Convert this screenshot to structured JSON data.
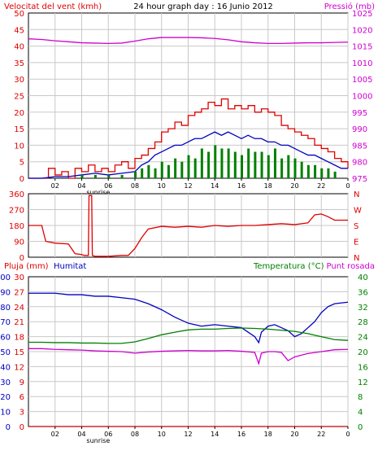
{
  "title": "24 hour graph day : 16 Junio 2012",
  "colors": {
    "red": "#e00000",
    "blue": "#0000c0",
    "magenta": "#d000d0",
    "green": "#008000",
    "darkred": "#c00000",
    "grid": "#c8c8c8"
  },
  "chart_data": [
    {
      "type": "line",
      "name": "wind-pressure",
      "left_label": "Velocitat del vent (kmh)",
      "right_label": "Pressió (mb)",
      "ylim_left": [
        0,
        50
      ],
      "ylim_right": [
        975,
        1025
      ],
      "left_ticks": [
        "0",
        "5",
        "10",
        "15",
        "20",
        "25",
        "30",
        "35",
        "40",
        "45",
        "50"
      ],
      "right_ticks": [
        "975",
        "980",
        "985",
        "990",
        "995",
        "1000",
        "1005",
        "1010",
        "1015",
        "1020",
        "1025"
      ],
      "x_ticks": [
        "02",
        "04",
        "06",
        "08",
        "10",
        "12",
        "14",
        "16",
        "18",
        "20",
        "22",
        "0"
      ],
      "sunrise_label": "sunrise",
      "sunrise_hour": 5.0,
      "series": [
        {
          "key": "pressure",
          "axis": "right",
          "color": "magenta",
          "x": [
            0,
            1,
            2,
            3,
            4,
            5,
            6,
            7,
            8,
            9,
            10,
            11,
            12,
            13,
            14,
            15,
            16,
            17,
            18,
            19,
            20,
            21,
            22,
            23,
            24
          ],
          "y": [
            1017.2,
            1017.0,
            1016.6,
            1016.3,
            1016.0,
            1015.9,
            1015.8,
            1015.9,
            1016.5,
            1017.2,
            1017.6,
            1017.6,
            1017.6,
            1017.5,
            1017.3,
            1016.9,
            1016.3,
            1016.0,
            1015.8,
            1015.8,
            1015.9,
            1016.0,
            1016.0,
            1016.1,
            1016.2
          ]
        },
        {
          "key": "gust",
          "axis": "left",
          "color": "red",
          "style": "step",
          "x": [
            0,
            1,
            1.5,
            2,
            2.5,
            3,
            3.5,
            4,
            4.5,
            5,
            5.5,
            6,
            6.5,
            7,
            7.5,
            8,
            8.5,
            9,
            9.5,
            10,
            10.5,
            11,
            11.5,
            12,
            12.5,
            13,
            13.5,
            14,
            14.5,
            15,
            15.5,
            16,
            16.5,
            17,
            17.5,
            18,
            18.5,
            19,
            19.5,
            20,
            20.5,
            21,
            21.5,
            22,
            22.5,
            23,
            23.5,
            24
          ],
          "y": [
            0,
            0,
            3,
            1,
            2,
            0,
            3,
            2,
            4,
            2,
            3,
            2,
            4,
            5,
            3,
            6,
            7,
            9,
            11,
            14,
            15,
            17,
            16,
            19,
            20,
            21,
            23,
            22,
            24,
            21,
            22,
            21,
            22,
            20,
            21,
            20,
            19,
            16,
            15,
            14,
            13,
            12,
            10,
            9,
            8,
            6,
            5,
            3
          ]
        },
        {
          "key": "speed_avg",
          "axis": "left",
          "color": "blue",
          "x": [
            0,
            1,
            2,
            3,
            4,
            5,
            6,
            7,
            8,
            8.5,
            9,
            9.5,
            10,
            10.5,
            11,
            11.5,
            12,
            12.5,
            13,
            13.5,
            14,
            14.5,
            15,
            15.5,
            16,
            16.5,
            17,
            17.5,
            18,
            18.5,
            19,
            19.5,
            20,
            20.5,
            21,
            21.5,
            22,
            22.5,
            23,
            23.5,
            24
          ],
          "y": [
            0,
            0,
            0.5,
            0.5,
            1,
            1.5,
            1,
            1.5,
            2,
            4,
            5,
            7,
            8,
            9,
            10,
            10,
            11,
            12,
            12,
            13,
            14,
            13,
            14,
            13,
            12,
            13,
            12,
            12,
            11,
            11,
            10,
            10,
            9,
            8,
            7,
            7,
            6,
            5,
            4,
            3,
            3
          ]
        },
        {
          "key": "speed_bars",
          "axis": "left",
          "color": "green",
          "style": "bars",
          "x": [
            4,
            5,
            6,
            7,
            8,
            8.5,
            9,
            9.5,
            10,
            10.5,
            11,
            11.5,
            12,
            12.5,
            13,
            13.5,
            14,
            14.5,
            15,
            15.5,
            16,
            16.5,
            17,
            17.5,
            18,
            18.5,
            19,
            19.5,
            20,
            20.5,
            21,
            21.5,
            22,
            22.5,
            23
          ],
          "y": [
            1,
            1,
            1,
            1,
            2,
            3,
            4,
            3,
            5,
            4,
            6,
            5,
            7,
            6,
            9,
            8,
            10,
            9,
            9,
            8,
            7,
            9,
            8,
            8,
            7,
            9,
            6,
            7,
            6,
            5,
            4,
            4,
            3,
            3,
            2
          ]
        }
      ]
    },
    {
      "type": "line",
      "name": "direction",
      "ylim": [
        0,
        360
      ],
      "left_ticks": [
        "0",
        "90",
        "180",
        "270",
        "360"
      ],
      "right_ticks": [
        "N",
        "E",
        "S",
        "W",
        "N"
      ],
      "series": [
        {
          "key": "direction",
          "color": "red",
          "x": [
            0,
            1,
            1.3,
            2,
            3,
            3.5,
            4,
            4.2,
            4.5,
            4.55,
            4.75,
            4.8,
            5,
            6,
            7,
            7.5,
            8,
            8.5,
            9,
            10,
            11,
            12,
            13,
            14,
            15,
            16,
            17,
            18,
            19,
            20,
            20.5,
            21,
            21.5,
            22,
            22.5,
            23,
            24
          ],
          "y": [
            180,
            180,
            90,
            80,
            75,
            20,
            15,
            10,
            10,
            350,
            350,
            10,
            5,
            5,
            10,
            10,
            50,
            110,
            160,
            175,
            170,
            175,
            170,
            180,
            175,
            180,
            180,
            185,
            190,
            185,
            190,
            195,
            240,
            245,
            230,
            210,
            210
          ]
        }
      ]
    },
    {
      "type": "line",
      "name": "rain-humidity-temp",
      "labels": {
        "rain": "Pluja (mm)",
        "humidity": "Humitat",
        "temperature": "Temperatura (°C)",
        "dewpoint": "Punt rosada"
      },
      "ylim_humidity": [
        0,
        100
      ],
      "ylim_temp": [
        0,
        40
      ],
      "ylim_rain": [
        0,
        30
      ],
      "humidity_ticks": [
        "0",
        "10",
        "20",
        "30",
        "40",
        "50",
        "60",
        "70",
        "80",
        "90",
        "100"
      ],
      "rain_ticks": [
        "0",
        "3",
        "6",
        "9",
        "12",
        "15",
        "18",
        "21",
        "24",
        "27",
        "30"
      ],
      "temp_ticks": [
        "0",
        "4",
        "8",
        "12",
        "16",
        "20",
        "24",
        "28",
        "32",
        "36",
        "40"
      ],
      "x_ticks": [
        "02",
        "04",
        "06",
        "08",
        "10",
        "12",
        "14",
        "16",
        "18",
        "20",
        "22",
        "0"
      ],
      "sunrise_label": "sunrise",
      "series": [
        {
          "key": "humidity",
          "axis": "humidity",
          "color": "blue",
          "x": [
            0,
            1,
            2,
            3,
            4,
            5,
            6,
            7,
            8,
            9,
            10,
            11,
            12,
            13,
            14,
            15,
            16,
            16.5,
            17,
            17.3,
            17.5,
            18,
            18.5,
            19,
            19.5,
            20,
            20.5,
            21,
            21.5,
            22,
            22.5,
            23,
            24
          ],
          "y": [
            89,
            89,
            89,
            88,
            88,
            87,
            87,
            86,
            85,
            82,
            78,
            73,
            69,
            67,
            68,
            67,
            66,
            63,
            60,
            56,
            63,
            67,
            68,
            66,
            64,
            60,
            62,
            66,
            70,
            76,
            80,
            82,
            83
          ]
        },
        {
          "key": "temperature",
          "axis": "temp",
          "color": "green",
          "x": [
            0,
            1,
            2,
            3,
            4,
            5,
            6,
            7,
            8,
            9,
            10,
            11,
            12,
            13,
            14,
            15,
            16,
            17,
            18,
            19,
            20,
            21,
            22,
            23,
            24
          ],
          "y": [
            22.5,
            22.5,
            22.4,
            22.4,
            22.3,
            22.3,
            22.2,
            22.2,
            22.6,
            23.5,
            24.5,
            25.2,
            25.8,
            26.0,
            26.0,
            26.2,
            26.3,
            26.2,
            26.0,
            25.7,
            25.4,
            24.8,
            24.0,
            23.2,
            23.0
          ]
        },
        {
          "key": "dewpoint",
          "axis": "temp",
          "color": "magenta",
          "x": [
            0,
            1,
            2,
            3,
            4,
            5,
            6,
            7,
            8,
            9,
            10,
            11,
            12,
            13,
            14,
            15,
            16,
            17,
            17.3,
            17.5,
            18,
            18.5,
            19,
            19.5,
            20,
            21,
            22,
            23,
            24
          ],
          "y": [
            20.8,
            20.8,
            20.6,
            20.5,
            20.4,
            20.2,
            20.1,
            20.0,
            19.6,
            19.9,
            20.1,
            20.2,
            20.3,
            20.2,
            20.2,
            20.3,
            20.1,
            19.8,
            16.8,
            19.6,
            20.0,
            20.0,
            19.8,
            17.6,
            18.6,
            19.5,
            20.0,
            20.5,
            20.6
          ]
        },
        {
          "key": "rain",
          "axis": "rain",
          "color": "darkred",
          "x": [
            0,
            24
          ],
          "y": [
            0,
            0
          ]
        }
      ]
    }
  ]
}
